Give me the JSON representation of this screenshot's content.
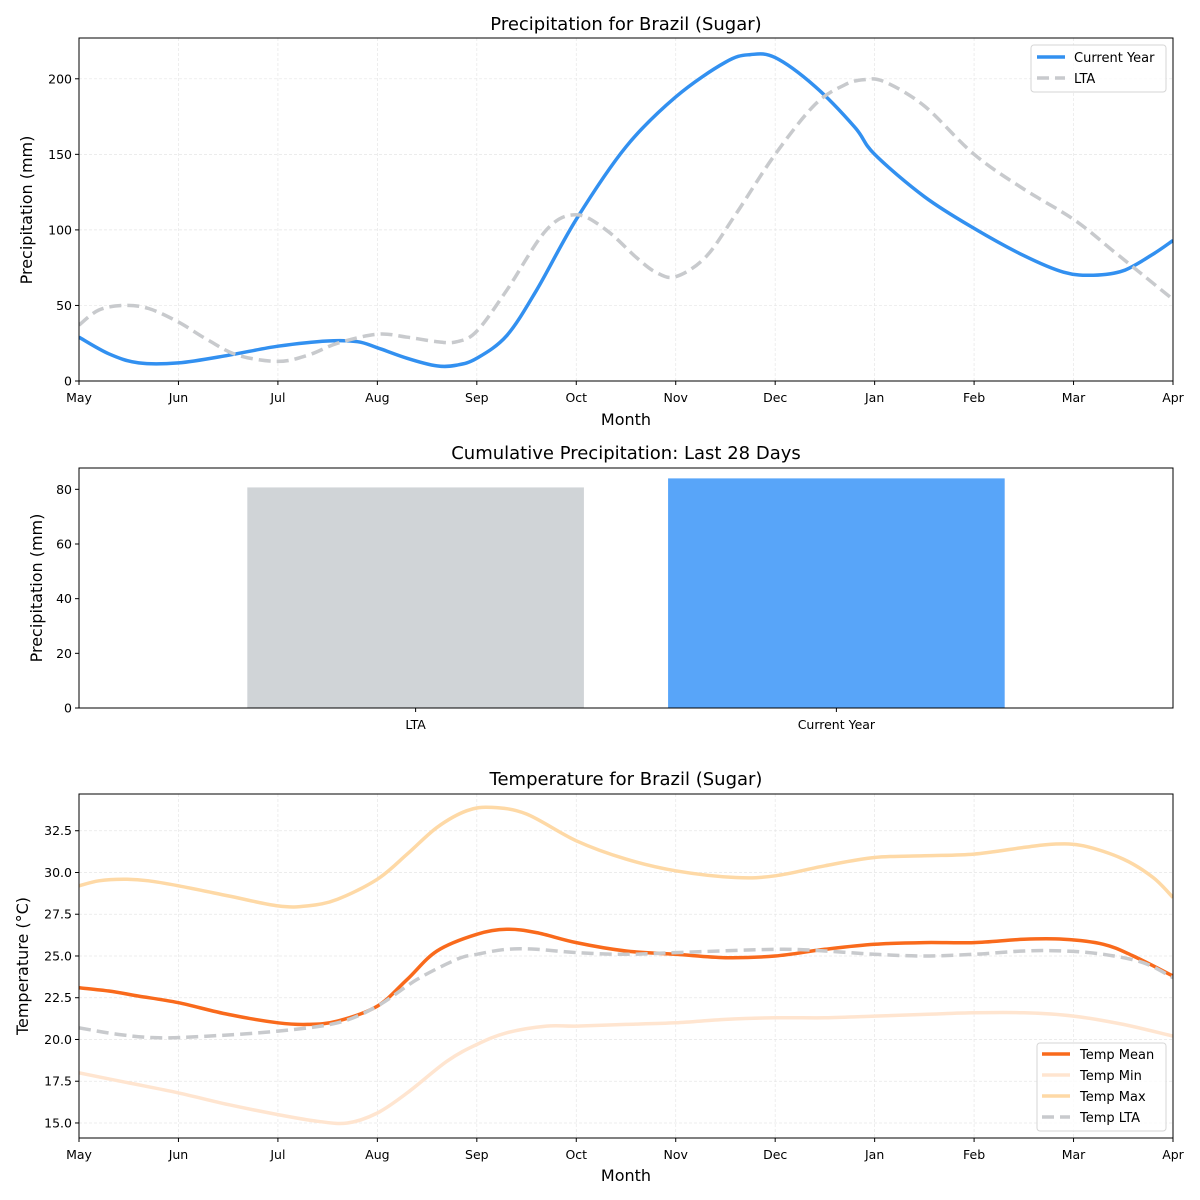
{
  "chart_data": [
    {
      "type": "line",
      "title": "Precipitation for Brazil (Sugar)",
      "xlabel": "Month",
      "ylabel": "Precipitation (mm)",
      "x": [
        "May",
        "Jun",
        "Jul",
        "Aug",
        "Sep",
        "Oct",
        "Nov",
        "Dec",
        "Jan",
        "Feb",
        "Mar",
        "Apr"
      ],
      "ylim": [
        0,
        227
      ],
      "yticks": [
        0,
        50,
        100,
        150,
        200
      ],
      "grid": true,
      "legend": "top-right",
      "series": [
        {
          "name": "Current Year",
          "color": "#3290f0",
          "style": "solid",
          "values": [
            29,
            12,
            23,
            22,
            15,
            107,
            188,
            214,
            150,
            101,
            71,
            93
          ],
          "dense": [
            [
              0,
              29
            ],
            [
              0.3,
              18
            ],
            [
              0.6,
              12
            ],
            [
              1,
              12
            ],
            [
              1.5,
              17
            ],
            [
              2,
              23
            ],
            [
              2.5,
              26.5
            ],
            [
              2.8,
              26
            ],
            [
              3,
              22
            ],
            [
              3.3,
              15
            ],
            [
              3.6,
              10
            ],
            [
              3.8,
              10.5
            ],
            [
              4,
              15
            ],
            [
              4.3,
              30
            ],
            [
              4.6,
              60
            ],
            [
              5,
              107
            ],
            [
              5.5,
              155
            ],
            [
              6,
              188
            ],
            [
              6.5,
              211
            ],
            [
              6.75,
              216
            ],
            [
              7,
              214
            ],
            [
              7.4,
              195
            ],
            [
              7.8,
              168
            ],
            [
              8,
              150
            ],
            [
              8.5,
              122
            ],
            [
              9,
              101
            ],
            [
              9.5,
              83
            ],
            [
              9.9,
              72
            ],
            [
              10.2,
              70
            ],
            [
              10.5,
              73
            ],
            [
              10.8,
              84
            ],
            [
              11,
              93
            ]
          ]
        },
        {
          "name": "LTA",
          "color": "#c8cacd",
          "style": "dashed",
          "values": [
            37,
            39,
            13,
            31,
            33,
            110,
            70,
            150,
            199,
            150,
            107,
            54
          ],
          "dense": [
            [
              0,
              37
            ],
            [
              0.2,
              47
            ],
            [
              0.45,
              50
            ],
            [
              0.7,
              48
            ],
            [
              1,
              39
            ],
            [
              1.3,
              27
            ],
            [
              1.6,
              17
            ],
            [
              2,
              13
            ],
            [
              2.3,
              17
            ],
            [
              2.6,
              25
            ],
            [
              3,
              31
            ],
            [
              3.3,
              29
            ],
            [
              3.6,
              26
            ],
            [
              3.8,
              26
            ],
            [
              4,
              33
            ],
            [
              4.3,
              60
            ],
            [
              4.7,
              100
            ],
            [
              5,
              110
            ],
            [
              5.3,
              100
            ],
            [
              5.6,
              82
            ],
            [
              5.8,
              72
            ],
            [
              6,
              69
            ],
            [
              6.3,
              82
            ],
            [
              6.6,
              110
            ],
            [
              7,
              150
            ],
            [
              7.4,
              183
            ],
            [
              7.7,
              196
            ],
            [
              7.9,
              199.5
            ],
            [
              8.1,
              198
            ],
            [
              8.5,
              182
            ],
            [
              9,
              150
            ],
            [
              9.5,
              127
            ],
            [
              10,
              107
            ],
            [
              10.4,
              86
            ],
            [
              10.7,
              70
            ],
            [
              11,
              54
            ]
          ]
        }
      ]
    },
    {
      "type": "bar",
      "title": "Cumulative Precipitation: Last 28 Days",
      "xlabel": "",
      "ylabel": "Precipitation (mm)",
      "categories": [
        "LTA",
        "Current Year"
      ],
      "values": [
        80.7,
        84.0
      ],
      "colors": [
        "#d0d4d7",
        "#58a5f9"
      ],
      "ylim": [
        0,
        87.8
      ],
      "yticks": [
        0,
        20,
        40,
        60,
        80
      ]
    },
    {
      "type": "line",
      "title": "Temperature for Brazil (Sugar)",
      "xlabel": "Month",
      "ylabel": "Temperature (°C)",
      "x": [
        "May",
        "Jun",
        "Jul",
        "Aug",
        "Sep",
        "Oct",
        "Nov",
        "Dec",
        "Jan",
        "Feb",
        "Mar",
        "Apr"
      ],
      "ylim": [
        14.1,
        34.7
      ],
      "yticks": [
        "15.0",
        "17.5",
        "20.0",
        "22.5",
        "25.0",
        "27.5",
        "30.0",
        "32.5"
      ],
      "grid": true,
      "legend": "bottom-right",
      "series": [
        {
          "name": "Temp Mean",
          "color": "#f96a1c",
          "style": "solid",
          "width": 3.5,
          "values": [
            23.1,
            22.2,
            21.0,
            22.0,
            26.3,
            25.8,
            25.1,
            25.0,
            25.7,
            25.8,
            26.0,
            23.8
          ],
          "dense": [
            [
              0,
              23.1
            ],
            [
              0.3,
              22.9
            ],
            [
              0.6,
              22.6
            ],
            [
              1,
              22.2
            ],
            [
              1.5,
              21.5
            ],
            [
              2,
              21.0
            ],
            [
              2.3,
              20.9
            ],
            [
              2.6,
              21.1
            ],
            [
              3,
              22.0
            ],
            [
              3.3,
              23.6
            ],
            [
              3.6,
              25.3
            ],
            [
              4,
              26.3
            ],
            [
              4.3,
              26.6
            ],
            [
              4.6,
              26.4
            ],
            [
              5,
              25.8
            ],
            [
              5.5,
              25.3
            ],
            [
              6,
              25.1
            ],
            [
              6.5,
              24.9
            ],
            [
              7,
              25.0
            ],
            [
              7.5,
              25.4
            ],
            [
              8,
              25.7
            ],
            [
              8.5,
              25.8
            ],
            [
              9,
              25.8
            ],
            [
              9.5,
              26.0
            ],
            [
              9.9,
              26.0
            ],
            [
              10.3,
              25.7
            ],
            [
              10.6,
              25.0
            ],
            [
              11,
              23.8
            ]
          ]
        },
        {
          "name": "Temp Min",
          "color": "#ffe5d0",
          "style": "solid",
          "width": 3.5,
          "values": [
            18.0,
            16.8,
            15.5,
            15.6,
            19.7,
            20.8,
            21.0,
            21.3,
            21.4,
            21.6,
            21.4,
            20.2
          ],
          "dense": [
            [
              0,
              18.0
            ],
            [
              0.5,
              17.4
            ],
            [
              1,
              16.8
            ],
            [
              1.5,
              16.1
            ],
            [
              2,
              15.5
            ],
            [
              2.4,
              15.1
            ],
            [
              2.7,
              15.0
            ],
            [
              3,
              15.6
            ],
            [
              3.3,
              16.8
            ],
            [
              3.7,
              18.7
            ],
            [
              4,
              19.7
            ],
            [
              4.3,
              20.4
            ],
            [
              4.7,
              20.8
            ],
            [
              5,
              20.8
            ],
            [
              5.5,
              20.9
            ],
            [
              6,
              21.0
            ],
            [
              6.5,
              21.2
            ],
            [
              7,
              21.3
            ],
            [
              7.5,
              21.3
            ],
            [
              8,
              21.4
            ],
            [
              8.5,
              21.5
            ],
            [
              9,
              21.6
            ],
            [
              9.5,
              21.6
            ],
            [
              10,
              21.4
            ],
            [
              10.5,
              20.9
            ],
            [
              11,
              20.2
            ]
          ]
        },
        {
          "name": "Temp Max",
          "color": "#fed9a6",
          "style": "solid",
          "width": 3.5,
          "values": [
            29.2,
            29.2,
            28.0,
            29.6,
            33.8,
            31.9,
            30.1,
            29.8,
            30.9,
            31.1,
            31.7,
            28.5
          ],
          "dense": [
            [
              0,
              29.2
            ],
            [
              0.2,
              29.5
            ],
            [
              0.45,
              29.6
            ],
            [
              0.7,
              29.5
            ],
            [
              1,
              29.2
            ],
            [
              1.5,
              28.6
            ],
            [
              2,
              28.0
            ],
            [
              2.3,
              28.0
            ],
            [
              2.6,
              28.4
            ],
            [
              3,
              29.6
            ],
            [
              3.3,
              31.1
            ],
            [
              3.6,
              32.7
            ],
            [
              3.9,
              33.7
            ],
            [
              4.15,
              33.9
            ],
            [
              4.5,
              33.5
            ],
            [
              5,
              31.9
            ],
            [
              5.5,
              30.8
            ],
            [
              6,
              30.1
            ],
            [
              6.6,
              29.7
            ],
            [
              7,
              29.8
            ],
            [
              7.5,
              30.4
            ],
            [
              8,
              30.9
            ],
            [
              8.5,
              31.0
            ],
            [
              9,
              31.1
            ],
            [
              9.5,
              31.5
            ],
            [
              9.8,
              31.7
            ],
            [
              10.1,
              31.6
            ],
            [
              10.5,
              30.8
            ],
            [
              10.8,
              29.7
            ],
            [
              11,
              28.5
            ]
          ]
        },
        {
          "name": "Temp LTA",
          "color": "#c8cacd",
          "style": "dashed",
          "width": 3.5,
          "values": [
            20.7,
            20.1,
            20.5,
            22.0,
            25.1,
            25.2,
            25.2,
            25.4,
            25.1,
            25.1,
            25.3,
            23.7
          ],
          "dense": [
            [
              0,
              20.7
            ],
            [
              0.4,
              20.3
            ],
            [
              0.8,
              20.1
            ],
            [
              1.3,
              20.2
            ],
            [
              2,
              20.5
            ],
            [
              2.6,
              21.0
            ],
            [
              3,
              22.0
            ],
            [
              3.4,
              23.6
            ],
            [
              3.8,
              24.8
            ],
            [
              4,
              25.1
            ],
            [
              4.3,
              25.4
            ],
            [
              4.6,
              25.4
            ],
            [
              5,
              25.2
            ],
            [
              5.5,
              25.1
            ],
            [
              6,
              25.2
            ],
            [
              7,
              25.4
            ],
            [
              7.5,
              25.3
            ],
            [
              8,
              25.1
            ],
            [
              8.5,
              25.0
            ],
            [
              9,
              25.1
            ],
            [
              9.5,
              25.3
            ],
            [
              9.9,
              25.3
            ],
            [
              10.3,
              25.1
            ],
            [
              10.7,
              24.6
            ],
            [
              11,
              23.7
            ]
          ]
        }
      ]
    }
  ]
}
